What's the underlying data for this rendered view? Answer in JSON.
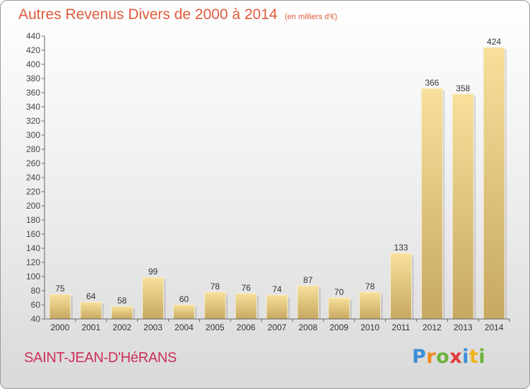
{
  "title": "Autres Revenus Divers de 2000 à 2014",
  "subtitle": "(en milliers d'€)",
  "commune": "SAINT-JEAN-D'HéRANS",
  "logo": {
    "text": "Proxiti",
    "letter_colors": [
      "#3a8fd8",
      "#f08a1c",
      "#6cb33e",
      "#e23a3a",
      "#3a8fd8",
      "#f0b21c",
      "#6cb33e"
    ]
  },
  "colors": {
    "title": "#e05a3c",
    "commune": "#cc2f5a",
    "bar_light": "#f6dc8f",
    "bar_dark": "#c7a962",
    "axis": "#555555"
  },
  "chart_data": {
    "type": "bar",
    "categories": [
      "2000",
      "2001",
      "2002",
      "2003",
      "2004",
      "2005",
      "2006",
      "2007",
      "2008",
      "2009",
      "2010",
      "2011",
      "2012",
      "2013",
      "2014"
    ],
    "values": [
      75,
      64,
      58,
      99,
      60,
      78,
      76,
      74,
      87,
      70,
      78,
      133,
      366,
      358,
      424
    ],
    "ylim": [
      40,
      440
    ],
    "yticks": [
      40,
      60,
      80,
      100,
      120,
      140,
      160,
      180,
      200,
      220,
      240,
      260,
      280,
      300,
      320,
      340,
      360,
      380,
      400,
      420,
      440
    ],
    "grid": false,
    "data_labels": true
  }
}
